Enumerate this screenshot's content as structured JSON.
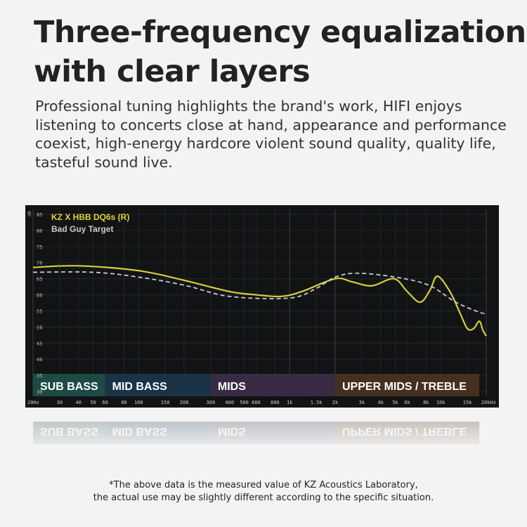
{
  "header": {
    "title_line1": "Three-frequency equalization",
    "title_line2": "with clear layers",
    "description": "Professional tuning highlights the brand's work, HIFI enjoys listening to concerts close at hand, appearance and performance coexist, high-energy hardcore violent sound quality, quality life, tasteful sound live."
  },
  "chart_data": {
    "type": "line",
    "ylabel": "dB",
    "ylim": [
      30,
      85
    ],
    "yticks": [
      30,
      35,
      40,
      45,
      50,
      55,
      60,
      65,
      70,
      75,
      80,
      85
    ],
    "xscale": "log",
    "xlim": [
      20,
      20000
    ],
    "xticks": [
      {
        "v": 20,
        "label": "20Hz"
      },
      {
        "v": 30,
        "label": "30"
      },
      {
        "v": 40,
        "label": "40"
      },
      {
        "v": 50,
        "label": "50"
      },
      {
        "v": 60,
        "label": "60"
      },
      {
        "v": 80,
        "label": "80"
      },
      {
        "v": 100,
        "label": "100"
      },
      {
        "v": 150,
        "label": "150"
      },
      {
        "v": 200,
        "label": "200"
      },
      {
        "v": 300,
        "label": "300"
      },
      {
        "v": 400,
        "label": "400"
      },
      {
        "v": 500,
        "label": "500"
      },
      {
        "v": 600,
        "label": "600"
      },
      {
        "v": 800,
        "label": "800"
      },
      {
        "v": 1000,
        "label": "1k"
      },
      {
        "v": 1500,
        "label": "1.5k"
      },
      {
        "v": 2000,
        "label": "2k"
      },
      {
        "v": 3000,
        "label": "3k"
      },
      {
        "v": 4000,
        "label": "4k"
      },
      {
        "v": 5000,
        "label": "5k"
      },
      {
        "v": 6000,
        "label": "6k"
      },
      {
        "v": 8000,
        "label": "8k"
      },
      {
        "v": 10000,
        "label": "10k"
      },
      {
        "v": 15000,
        "label": "15k"
      },
      {
        "v": 20000,
        "label": "20kHz"
      }
    ],
    "grid": true,
    "legend_placement": "top-left",
    "bands": [
      {
        "label": "SUB BASS",
        "from": 20,
        "to": 60,
        "color": "#1d4a44"
      },
      {
        "label": "MID BASS",
        "from": 60,
        "to": 300,
        "color": "#1a3346"
      },
      {
        "label": "MIDS",
        "from": 300,
        "to": 2000,
        "color": "#3a2b44"
      },
      {
        "label": "UPPER MIDS / TREBLE",
        "from": 2000,
        "to": 18000,
        "color": "#45301f"
      }
    ],
    "series": [
      {
        "name": "KZ X HBB DQ6s (R)",
        "color": "#d8cc3a",
        "style": "solid",
        "x": [
          20,
          40,
          100,
          200,
          400,
          600,
          880,
          1200,
          2000,
          2600,
          3500,
          4900,
          6000,
          7300,
          8500,
          9500,
          11500,
          13500,
          15000,
          16500,
          18000,
          19000,
          20000
        ],
        "y": [
          68.5,
          69,
          67.5,
          64.5,
          61,
          60,
          59.5,
          61,
          65,
          64,
          62.8,
          65,
          61,
          57.7,
          61.5,
          65.8,
          61,
          54,
          49.5,
          49.5,
          51.8,
          49,
          47.2
        ]
      },
      {
        "name": "Bad Guy Target",
        "color": "#c8c8d0",
        "style": "dashed",
        "x": [
          20,
          50,
          100,
          200,
          400,
          1000,
          1500,
          2000,
          2800,
          5000,
          8300,
          12600,
          18500,
          20000
        ],
        "y": [
          67,
          67,
          65.5,
          63,
          59.5,
          59,
          62,
          65.5,
          66.7,
          65.5,
          63,
          57.7,
          54.4,
          54.5
        ]
      }
    ]
  },
  "footer": {
    "line1": "*The above data is the measured value of KZ Acoustics Laboratory,",
    "line2": "the actual use may be slightly different according to the specific situation."
  }
}
